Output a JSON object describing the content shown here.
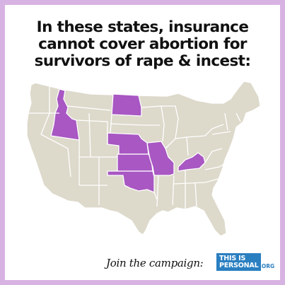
{
  "headline": {
    "line1": "In these states, insurance",
    "line2": "cannot cover abortion for",
    "line3": "survivors of rape & incest:"
  },
  "map": {
    "highlighted_states": [
      "Idaho",
      "North Dakota",
      "Nebraska",
      "Kansas",
      "Oklahoma",
      "Missouri",
      "Kentucky"
    ],
    "highlight_color": "#a857c3",
    "base_color": "#ddd9cb",
    "border_color": "#d7b3e3"
  },
  "footer": {
    "join_text": "Join the campaign:",
    "logo_line1": "THIS IS",
    "logo_line2": "PERSONAL",
    "logo_suffix": ".ORG",
    "logo_color": "#2a7fc1"
  }
}
